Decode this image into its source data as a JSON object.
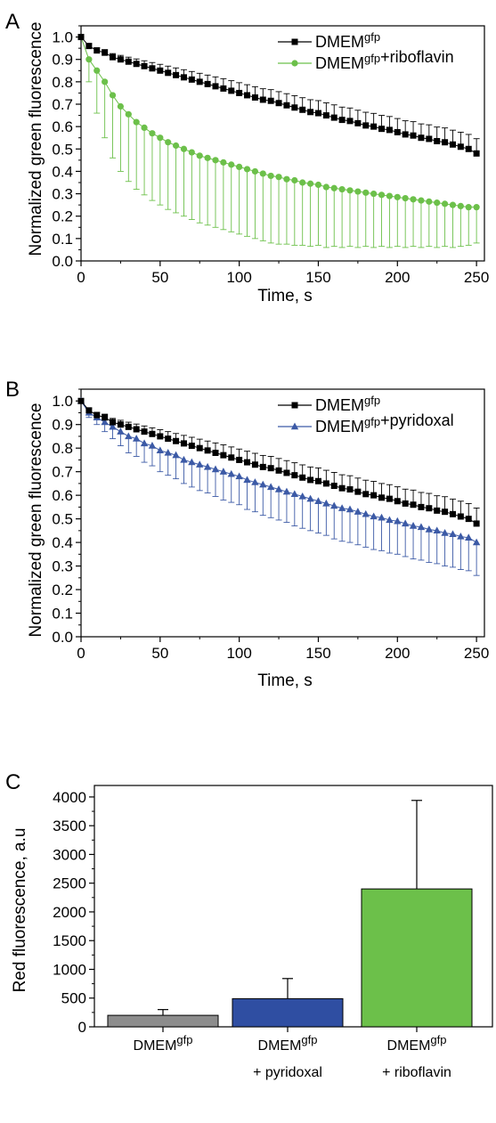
{
  "colors": {
    "black": "#000000",
    "green": "#6cc04a",
    "blue": "#3c5aa6",
    "gray": "#8c8c8c",
    "bar_blue": "#2f4ea2",
    "bar_green": "#6cc04a"
  },
  "chart_data": [
    {
      "type": "line",
      "panel_label": "A",
      "xlabel": "Time, s",
      "ylabel": "Normalized green fluorescence",
      "xlim": [
        0,
        255
      ],
      "ylim": [
        0,
        1.05
      ],
      "xticks": [
        "0",
        "50",
        "100",
        "150",
        "200",
        "250"
      ],
      "yticks": [
        "0.0",
        "0.1",
        "0.2",
        "0.3",
        "0.4",
        "0.5",
        "0.6",
        "0.7",
        "0.8",
        "0.9",
        "1.0"
      ],
      "x_step": 5,
      "x_range": [
        0,
        250
      ],
      "legend_position": "top-right",
      "series": [
        {
          "name": "DMEM",
          "name_sup": "gfp",
          "marker": "square",
          "color": "#000000",
          "values": [
            1.0,
            0.96,
            0.94,
            0.93,
            0.91,
            0.9,
            0.89,
            0.88,
            0.87,
            0.86,
            0.85,
            0.84,
            0.83,
            0.82,
            0.81,
            0.8,
            0.79,
            0.78,
            0.77,
            0.76,
            0.75,
            0.74,
            0.73,
            0.72,
            0.715,
            0.705,
            0.695,
            0.685,
            0.675,
            0.665,
            0.66,
            0.65,
            0.64,
            0.63,
            0.625,
            0.615,
            0.605,
            0.6,
            0.59,
            0.585,
            0.575,
            0.565,
            0.56,
            0.55,
            0.545,
            0.535,
            0.53,
            0.52,
            0.51,
            0.5,
            0.48
          ],
          "error": [
            0.0,
            0.01,
            0.012,
            0.014,
            0.016,
            0.018,
            0.02,
            0.022,
            0.024,
            0.026,
            0.028,
            0.03,
            0.032,
            0.034,
            0.036,
            0.038,
            0.04,
            0.042,
            0.044,
            0.045,
            0.046,
            0.047,
            0.048,
            0.049,
            0.05,
            0.051,
            0.052,
            0.053,
            0.054,
            0.055,
            0.056,
            0.056,
            0.057,
            0.057,
            0.058,
            0.058,
            0.059,
            0.059,
            0.06,
            0.06,
            0.061,
            0.061,
            0.062,
            0.062,
            0.063,
            0.063,
            0.064,
            0.064,
            0.065,
            0.065,
            0.066
          ]
        },
        {
          "name": "DMEM",
          "name_sup": "gfp",
          "name_suffix": "+riboflavin",
          "marker": "circle",
          "color": "#6cc04a",
          "values": [
            1.0,
            0.9,
            0.85,
            0.8,
            0.74,
            0.69,
            0.655,
            0.62,
            0.595,
            0.57,
            0.55,
            0.53,
            0.515,
            0.5,
            0.485,
            0.47,
            0.46,
            0.45,
            0.44,
            0.43,
            0.42,
            0.41,
            0.4,
            0.39,
            0.38,
            0.375,
            0.365,
            0.36,
            0.35,
            0.345,
            0.34,
            0.33,
            0.325,
            0.32,
            0.315,
            0.31,
            0.305,
            0.3,
            0.295,
            0.29,
            0.285,
            0.28,
            0.275,
            0.27,
            0.265,
            0.26,
            0.255,
            0.25,
            0.245,
            0.24,
            0.24
          ],
          "error": [
            0.0,
            0.1,
            0.19,
            0.25,
            0.28,
            0.29,
            0.3,
            0.3,
            0.3,
            0.3,
            0.3,
            0.3,
            0.3,
            0.3,
            0.3,
            0.3,
            0.3,
            0.3,
            0.3,
            0.3,
            0.3,
            0.3,
            0.3,
            0.3,
            0.3,
            0.3,
            0.29,
            0.29,
            0.28,
            0.28,
            0.27,
            0.27,
            0.26,
            0.26,
            0.25,
            0.25,
            0.24,
            0.24,
            0.23,
            0.23,
            0.22,
            0.22,
            0.21,
            0.21,
            0.2,
            0.2,
            0.19,
            0.19,
            0.18,
            0.17,
            0.16
          ]
        }
      ]
    },
    {
      "type": "line",
      "panel_label": "B",
      "xlabel": "Time, s",
      "ylabel": "Normalized green fluorescence",
      "xlim": [
        0,
        255
      ],
      "ylim": [
        0,
        1.05
      ],
      "xticks": [
        "0",
        "50",
        "100",
        "150",
        "200",
        "250"
      ],
      "yticks": [
        "0.0",
        "0.1",
        "0.2",
        "0.3",
        "0.4",
        "0.5",
        "0.6",
        "0.7",
        "0.8",
        "0.9",
        "1.0"
      ],
      "x_step": 5,
      "x_range": [
        0,
        250
      ],
      "legend_position": "top-right",
      "series": [
        {
          "name": "DMEM",
          "name_sup": "gfp",
          "marker": "square",
          "color": "#000000",
          "values": [
            1.0,
            0.96,
            0.94,
            0.93,
            0.91,
            0.9,
            0.89,
            0.88,
            0.87,
            0.86,
            0.85,
            0.84,
            0.83,
            0.82,
            0.81,
            0.8,
            0.79,
            0.78,
            0.77,
            0.76,
            0.75,
            0.74,
            0.73,
            0.72,
            0.715,
            0.705,
            0.695,
            0.685,
            0.675,
            0.665,
            0.66,
            0.65,
            0.64,
            0.63,
            0.625,
            0.615,
            0.605,
            0.6,
            0.59,
            0.585,
            0.575,
            0.565,
            0.56,
            0.55,
            0.545,
            0.535,
            0.53,
            0.52,
            0.51,
            0.5,
            0.48
          ],
          "error": [
            0.0,
            0.01,
            0.012,
            0.014,
            0.016,
            0.018,
            0.02,
            0.022,
            0.024,
            0.026,
            0.028,
            0.03,
            0.032,
            0.034,
            0.036,
            0.038,
            0.04,
            0.042,
            0.044,
            0.045,
            0.046,
            0.047,
            0.048,
            0.049,
            0.05,
            0.051,
            0.052,
            0.053,
            0.054,
            0.055,
            0.056,
            0.056,
            0.057,
            0.057,
            0.058,
            0.058,
            0.059,
            0.059,
            0.06,
            0.06,
            0.061,
            0.061,
            0.062,
            0.062,
            0.063,
            0.063,
            0.064,
            0.064,
            0.065,
            0.065,
            0.066
          ]
        },
        {
          "name": "DMEM",
          "name_sup": "gfp",
          "name_suffix": "+pyridoxal",
          "marker": "triangle",
          "color": "#3c5aa6",
          "values": [
            1.0,
            0.95,
            0.93,
            0.91,
            0.89,
            0.87,
            0.85,
            0.84,
            0.82,
            0.81,
            0.79,
            0.78,
            0.77,
            0.75,
            0.74,
            0.73,
            0.72,
            0.71,
            0.7,
            0.69,
            0.68,
            0.665,
            0.655,
            0.645,
            0.635,
            0.625,
            0.615,
            0.605,
            0.595,
            0.585,
            0.575,
            0.565,
            0.555,
            0.545,
            0.54,
            0.53,
            0.52,
            0.51,
            0.505,
            0.495,
            0.49,
            0.48,
            0.47,
            0.465,
            0.455,
            0.45,
            0.44,
            0.435,
            0.425,
            0.42,
            0.4
          ],
          "error": [
            0.0,
            0.02,
            0.03,
            0.04,
            0.05,
            0.06,
            0.07,
            0.075,
            0.08,
            0.085,
            0.09,
            0.095,
            0.1,
            0.1,
            0.105,
            0.11,
            0.11,
            0.115,
            0.12,
            0.12,
            0.12,
            0.125,
            0.125,
            0.13,
            0.13,
            0.13,
            0.13,
            0.135,
            0.135,
            0.135,
            0.135,
            0.135,
            0.14,
            0.14,
            0.14,
            0.14,
            0.14,
            0.14,
            0.14,
            0.14,
            0.14,
            0.14,
            0.14,
            0.14,
            0.14,
            0.14,
            0.14,
            0.14,
            0.14,
            0.14,
            0.14
          ]
        }
      ]
    },
    {
      "type": "bar",
      "panel_label": "C",
      "ylabel": "Red fluorescence, a.u",
      "ylim": [
        0,
        4200
      ],
      "yticks": [
        "0",
        "500",
        "1000",
        "1500",
        "2000",
        "2500",
        "3000",
        "3500",
        "4000"
      ],
      "categories": [
        {
          "line1": "DMEM",
          "sup": "gfp",
          "line2": ""
        },
        {
          "line1": "DMEM",
          "sup": "gfp",
          "line2": "+ pyridoxal"
        },
        {
          "line1": "DMEM",
          "sup": "gfp",
          "line2": "+ riboflavin"
        }
      ],
      "values": [
        200,
        490,
        2400
      ],
      "error_up": [
        100,
        350,
        1540
      ],
      "bar_colors": [
        "#8c8c8c",
        "#2f4ea2",
        "#6cc04a"
      ]
    }
  ]
}
